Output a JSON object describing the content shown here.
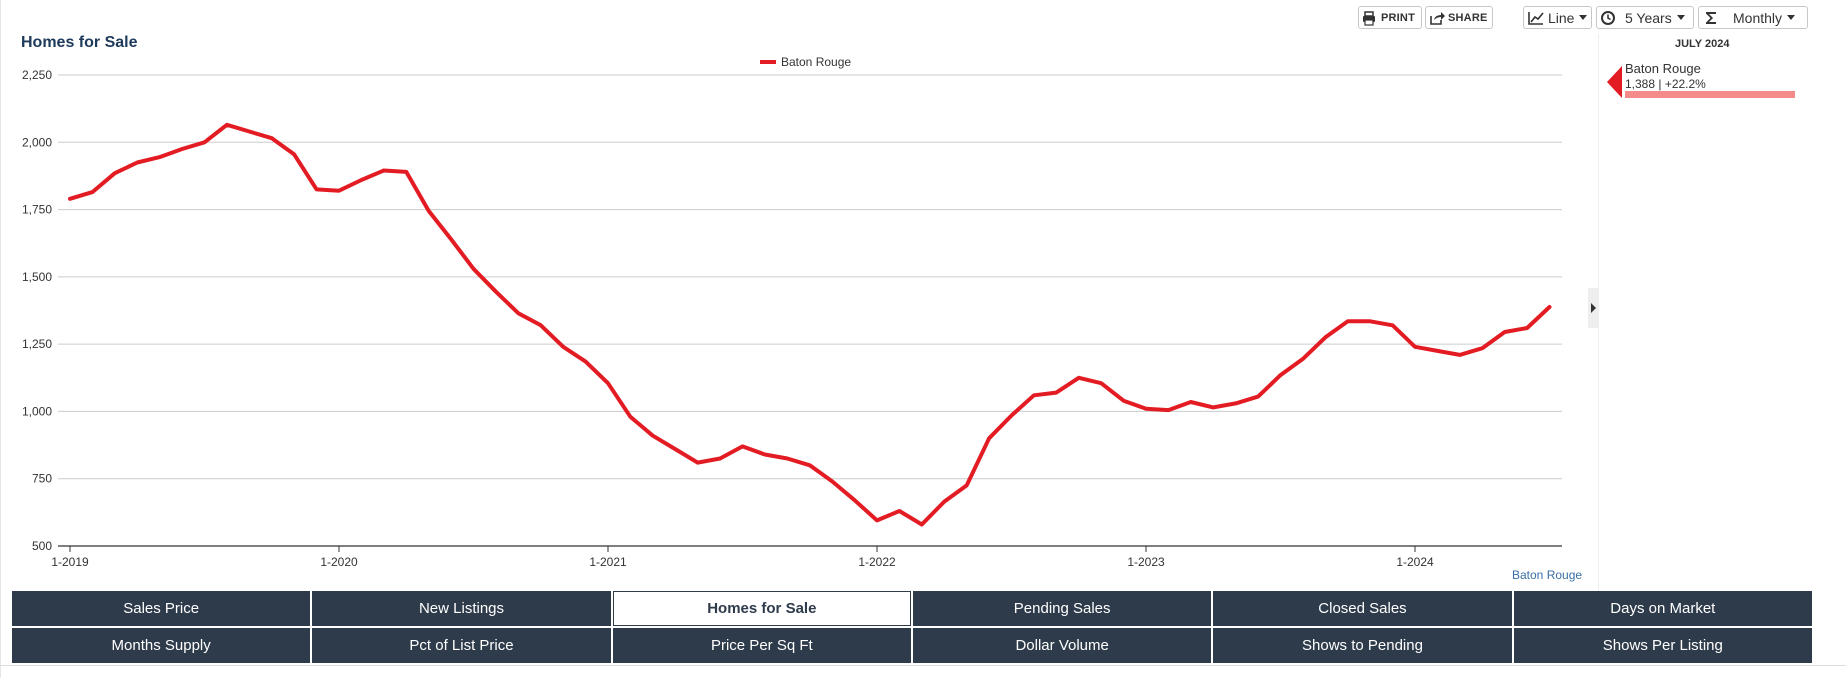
{
  "title": "Homes for Sale",
  "toolbar": {
    "print_label": "PRINT",
    "share_label": "SHARE",
    "chart_type_label": "Line",
    "period_label": "5 Years",
    "interval_label": "Monthly",
    "icons": [
      "printer-icon",
      "share-icon",
      "line-chart-icon",
      "clock-icon",
      "sigma-icon",
      "caret-down-icon"
    ]
  },
  "side_panel": {
    "month": "JULY 2024",
    "series_name": "Baton Rouge",
    "value_text": "1,388 | +22.2%",
    "accent": "#e31c24",
    "bar_color": "#f58a8a"
  },
  "source_label": "Baton Rouge",
  "tabs": [
    {
      "label": "Sales Price",
      "active": false
    },
    {
      "label": "New Listings",
      "active": false
    },
    {
      "label": "Homes for Sale",
      "active": true
    },
    {
      "label": "Pending Sales",
      "active": false
    },
    {
      "label": "Closed Sales",
      "active": false
    },
    {
      "label": "Days on Market",
      "active": false
    },
    {
      "label": "Months Supply",
      "active": false
    },
    {
      "label": "Pct of List Price",
      "active": false
    },
    {
      "label": "Price Per Sq Ft",
      "active": false
    },
    {
      "label": "Dollar Volume",
      "active": false
    },
    {
      "label": "Shows to Pending",
      "active": false
    },
    {
      "label": "Shows Per Listing",
      "active": false
    }
  ],
  "chart_data": {
    "type": "line",
    "title": "Homes for Sale",
    "xlabel": "",
    "ylabel": "",
    "ylim": [
      500,
      2250
    ],
    "yticks": [
      500,
      750,
      1000,
      1250,
      1500,
      1750,
      2000,
      2250
    ],
    "ytick_labels": [
      "500",
      "750",
      "1,000",
      "1,250",
      "1,500",
      "1,750",
      "2,000",
      "2,250"
    ],
    "xticks": [
      "1-2019",
      "1-2020",
      "1-2021",
      "1-2022",
      "1-2023",
      "1-2024"
    ],
    "x_start": "2019-01",
    "x_end": "2024-07",
    "grid": true,
    "legend_position": "top-center",
    "series": [
      {
        "name": "Baton Rouge",
        "color": "#e31c24",
        "values": [
          1790,
          1815,
          1885,
          1925,
          1945,
          1975,
          2000,
          2065,
          2040,
          2015,
          1955,
          1825,
          1820,
          1860,
          1895,
          1890,
          1745,
          1640,
          1530,
          1445,
          1365,
          1320,
          1240,
          1185,
          1105,
          980,
          910,
          860,
          810,
          825,
          870,
          840,
          825,
          800,
          740,
          670,
          595,
          630,
          580,
          665,
          725,
          900,
          985,
          1060,
          1070,
          1125,
          1105,
          1040,
          1010,
          1005,
          1035,
          1015,
          1030,
          1055,
          1135,
          1195,
          1275,
          1335,
          1335,
          1320,
          1240,
          1225,
          1210,
          1235,
          1295,
          1310,
          1388
        ]
      }
    ]
  }
}
